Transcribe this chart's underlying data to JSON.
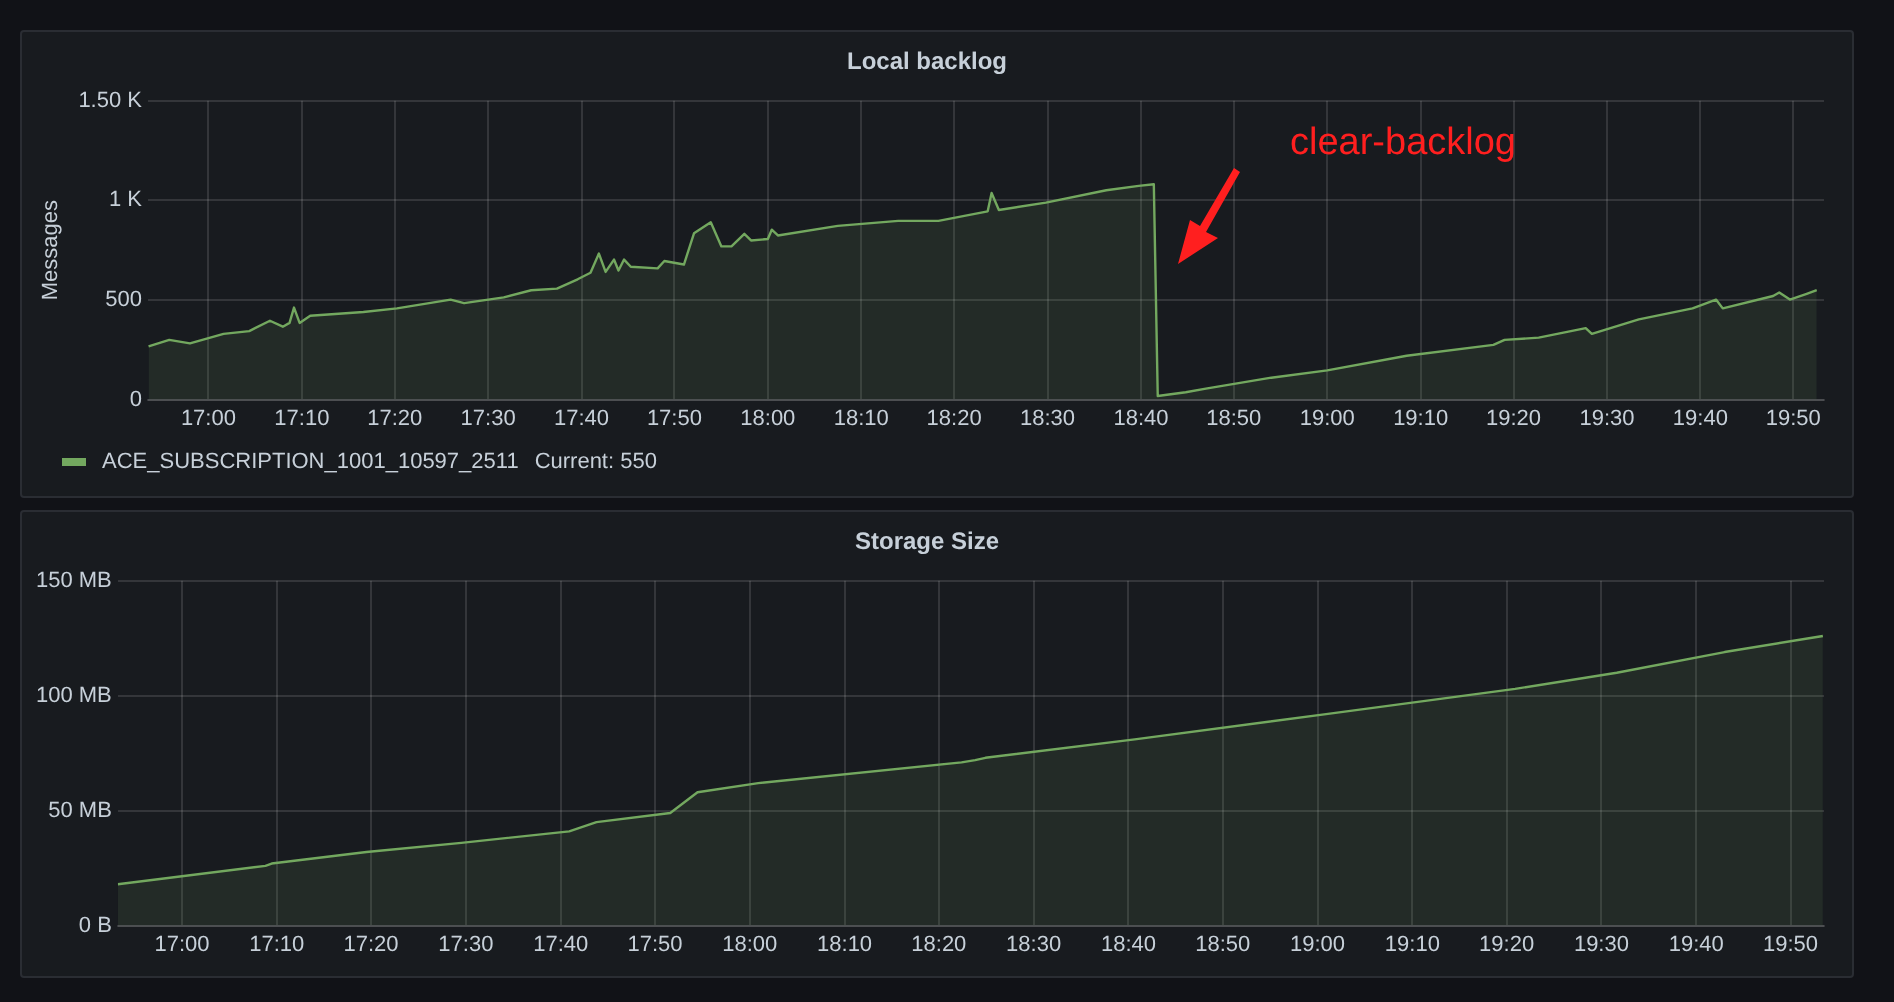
{
  "chart_data": [
    {
      "type": "area",
      "title": "Local backlog",
      "ylabel": "Messages",
      "grid": true,
      "legend": "bottom",
      "xlim": [
        16.892,
        19.888
      ],
      "ylim": [
        0,
        1500
      ],
      "yticks": [
        0,
        500,
        {
          "value": 1000,
          "label": "1 K"
        },
        {
          "value": 1500,
          "label": "1.50 K"
        }
      ],
      "xticks": [
        {
          "value": 17,
          "label": "17:00"
        },
        {
          "value": 17.167,
          "label": "17:10"
        },
        {
          "value": 17.333,
          "label": "17:20"
        },
        {
          "value": 17.5,
          "label": "17:30"
        },
        {
          "value": 17.667,
          "label": "17:40"
        },
        {
          "value": 17.833,
          "label": "17:50"
        },
        {
          "value": 18,
          "label": "18:00"
        },
        {
          "value": 18.167,
          "label": "18:10"
        },
        {
          "value": 18.333,
          "label": "18:20"
        },
        {
          "value": 18.5,
          "label": "18:30"
        },
        {
          "value": 18.667,
          "label": "18:40"
        },
        {
          "value": 18.833,
          "label": "18:50"
        },
        {
          "value": 19,
          "label": "19:00"
        },
        {
          "value": 19.167,
          "label": "19:10"
        },
        {
          "value": 19.333,
          "label": "19:20"
        },
        {
          "value": 19.5,
          "label": "19:30"
        },
        {
          "value": 19.667,
          "label": "19:40"
        },
        {
          "value": 19.833,
          "label": "19:50"
        }
      ],
      "annotations": [
        "clear-backlog",
        "Current: 550"
      ],
      "series": [
        {
          "name": "ACE_SUBSCRIPTION_1001_10597_2511",
          "color": "#73a85f",
          "x": [
            16.893,
            16.93,
            16.967,
            17.027,
            17.073,
            17.11,
            17.133,
            17.145,
            17.153,
            17.163,
            17.182,
            17.277,
            17.337,
            17.433,
            17.457,
            17.528,
            17.577,
            17.623,
            17.66,
            17.683,
            17.698,
            17.71,
            17.725,
            17.733,
            17.743,
            17.755,
            17.803,
            17.815,
            17.85,
            17.868,
            17.898,
            17.917,
            17.935,
            17.958,
            17.97,
            18,
            18.007,
            18.018,
            18.125,
            18.233,
            18.305,
            18.393,
            18.4,
            18.413,
            18.497,
            18.605,
            18.663,
            18.69,
            18.697,
            18.747,
            18.783,
            18.9,
            19,
            19.142,
            19.297,
            19.317,
            19.378,
            19.462,
            19.473,
            19.557,
            19.653,
            19.695,
            19.707,
            19.797,
            19.808,
            19.827,
            19.857,
            19.875
          ],
          "values": [
            267,
            300,
            282,
            330,
            344,
            396,
            366,
            385,
            462,
            385,
            421,
            440,
            458,
            502,
            484,
            513,
            549,
            557,
            604,
            637,
            733,
            641,
            703,
            648,
            703,
            667,
            659,
            696,
            678,
            835,
            890,
            769,
            769,
            832,
            799,
            806,
            853,
            824,
            872,
            897,
            897,
            945,
            1037,
            952,
            989,
            1051,
            1073,
            1081,
            18,
            37,
            55,
            110,
            147,
            220,
            275,
            300,
            311,
            359,
            330,
            403,
            458,
            502,
            458,
            520,
            538,
            502,
            531,
            549
          ]
        }
      ]
    },
    {
      "type": "area",
      "title": "Storage Size",
      "grid": true,
      "xlim": [
        16.887,
        19.892
      ],
      "ylim": [
        0,
        150
      ],
      "yticks": [
        {
          "value": 0,
          "label": "0 B"
        },
        {
          "value": 50,
          "label": "50 MB"
        },
        {
          "value": 100,
          "label": "100 MB"
        },
        {
          "value": 150,
          "label": "150 MB"
        }
      ],
      "xticks": [
        {
          "value": 17,
          "label": "17:00"
        },
        {
          "value": 17.167,
          "label": "17:10"
        },
        {
          "value": 17.333,
          "label": "17:20"
        },
        {
          "value": 17.5,
          "label": "17:30"
        },
        {
          "value": 17.667,
          "label": "17:40"
        },
        {
          "value": 17.833,
          "label": "17:50"
        },
        {
          "value": 18,
          "label": "18:00"
        },
        {
          "value": 18.167,
          "label": "18:10"
        },
        {
          "value": 18.333,
          "label": "18:20"
        },
        {
          "value": 18.5,
          "label": "18:30"
        },
        {
          "value": 18.667,
          "label": "18:40"
        },
        {
          "value": 18.833,
          "label": "18:50"
        },
        {
          "value": 19,
          "label": "19:00"
        },
        {
          "value": 19.167,
          "label": "19:10"
        },
        {
          "value": 19.333,
          "label": "19:20"
        },
        {
          "value": 19.5,
          "label": "19:30"
        },
        {
          "value": 19.667,
          "label": "19:40"
        },
        {
          "value": 19.833,
          "label": "19:50"
        }
      ],
      "series": [
        {
          "color": "#73a85f",
          "x": [
            16.887,
            17.147,
            17.158,
            17.325,
            17.492,
            17.682,
            17.73,
            17.86,
            17.908,
            18.015,
            18.373,
            18.397,
            18.415,
            18.678,
            19.015,
            19.348,
            19.527,
            19.717,
            19.89
          ],
          "values": [
            18,
            26,
            27,
            32,
            36,
            41,
            45,
            49,
            58,
            62,
            71,
            72,
            73,
            81,
            92,
            103,
            110,
            119,
            126
          ]
        }
      ]
    }
  ]
}
